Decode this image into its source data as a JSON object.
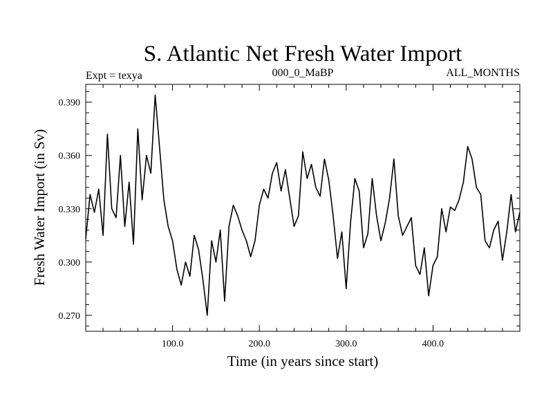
{
  "chart_data": {
    "type": "line",
    "title": "S. Atlantic Net Fresh Water Import",
    "subtitle_left": "Expt = texya",
    "subtitle_center": "000_0_MaBP",
    "subtitle_right": "ALL_MONTHS",
    "xlabel": "Time (in years since start)",
    "ylabel": "Fresh Water Import (in Sv)",
    "xlim": [
      0,
      500
    ],
    "ylim": [
      0.261,
      0.4
    ],
    "x_ticks": [
      "100.0",
      "200.0",
      "300.0",
      "400.0"
    ],
    "y_ticks": [
      "0.270",
      "0.300",
      "0.330",
      "0.360",
      "0.390"
    ],
    "grid": false,
    "series": [
      {
        "x": [
          0,
          5,
          10,
          15,
          20,
          25,
          30,
          35,
          40,
          45,
          50,
          55,
          60,
          65,
          70,
          75,
          80,
          85,
          90,
          95,
          100,
          105,
          110,
          115,
          120,
          125,
          130,
          135,
          140,
          145,
          150,
          155,
          160,
          165,
          170,
          175,
          180,
          185,
          190,
          195,
          200,
          205,
          210,
          215,
          220,
          225,
          230,
          235,
          240,
          245,
          250,
          255,
          260,
          265,
          270,
          275,
          280,
          285,
          290,
          295,
          300,
          305,
          310,
          315,
          320,
          325,
          330,
          335,
          340,
          345,
          350,
          355,
          360,
          365,
          370,
          375,
          380,
          385,
          390,
          395,
          400,
          405,
          410,
          415,
          420,
          425,
          430,
          435,
          440,
          445,
          450,
          455,
          460,
          465,
          470,
          475,
          480,
          485,
          490,
          495,
          500
        ],
        "values": [
          0.313,
          0.338,
          0.328,
          0.341,
          0.315,
          0.372,
          0.33,
          0.325,
          0.36,
          0.32,
          0.345,
          0.31,
          0.375,
          0.335,
          0.36,
          0.35,
          0.394,
          0.365,
          0.335,
          0.32,
          0.312,
          0.296,
          0.287,
          0.3,
          0.292,
          0.315,
          0.307,
          0.29,
          0.27,
          0.312,
          0.3,
          0.318,
          0.278,
          0.32,
          0.332,
          0.326,
          0.318,
          0.312,
          0.303,
          0.312,
          0.332,
          0.341,
          0.336,
          0.35,
          0.356,
          0.34,
          0.352,
          0.336,
          0.32,
          0.326,
          0.362,
          0.347,
          0.355,
          0.342,
          0.337,
          0.358,
          0.346,
          0.326,
          0.302,
          0.317,
          0.285,
          0.322,
          0.347,
          0.34,
          0.308,
          0.316,
          0.347,
          0.326,
          0.312,
          0.322,
          0.336,
          0.358,
          0.326,
          0.315,
          0.32,
          0.325,
          0.298,
          0.293,
          0.308,
          0.281,
          0.298,
          0.303,
          0.33,
          0.317,
          0.331,
          0.329,
          0.335,
          0.345,
          0.365,
          0.358,
          0.342,
          0.338,
          0.312,
          0.308,
          0.318,
          0.323,
          0.301,
          0.317,
          0.338,
          0.317,
          0.328
        ]
      }
    ]
  }
}
